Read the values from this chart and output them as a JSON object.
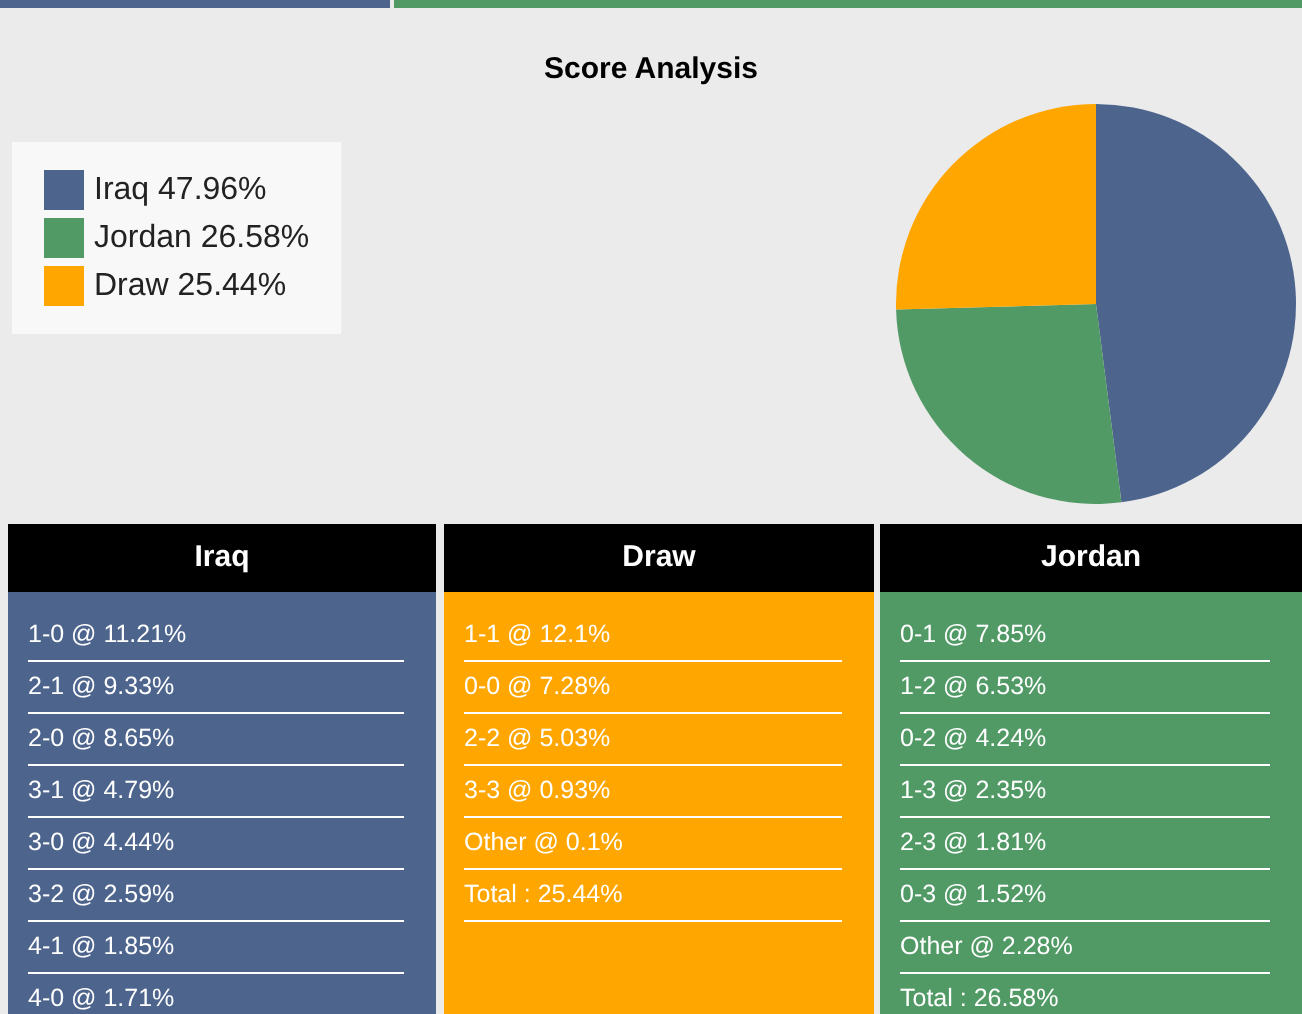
{
  "chart_data": [
    {
      "type": "pie",
      "title": "Score Analysis",
      "categories": [
        "Iraq 47.96%",
        "Jordan 26.58%",
        "Draw 25.44%"
      ],
      "values": [
        47.96,
        26.58,
        25.44
      ],
      "colors": [
        "#4d648d",
        "#519a66",
        "#ffa600"
      ],
      "legend": "top left"
    },
    {
      "type": "other",
      "title": "Iraq",
      "color": "#4d648d",
      "annotations": [
        "1-0 @ 11.21%",
        "2-1 @ 9.33%",
        "2-0 @ 8.65%",
        "3-1 @ 4.79%",
        "3-0 @ 4.44%",
        "3-2 @ 2.59%",
        "4-1 @ 1.85%",
        "4-0 @ 1.71%"
      ]
    },
    {
      "type": "other",
      "title": "Draw",
      "color": "#ffa600",
      "annotations": [
        "1-1 @ 12.1%",
        "0-0 @ 7.28%",
        "2-2 @ 5.03%",
        "3-3 @ 0.93%",
        "Other @ 0.1%",
        "Total : 25.44%"
      ]
    },
    {
      "type": "other",
      "title": "Jordan",
      "color": "#519a66",
      "annotations": [
        "0-1 @ 7.85%",
        "1-2 @ 6.53%",
        "0-2 @ 4.24%",
        "1-3 @ 2.35%",
        "2-3 @ 1.81%",
        "0-3 @ 1.52%",
        "Other @ 2.28%",
        "Total : 26.58%"
      ]
    }
  ]
}
